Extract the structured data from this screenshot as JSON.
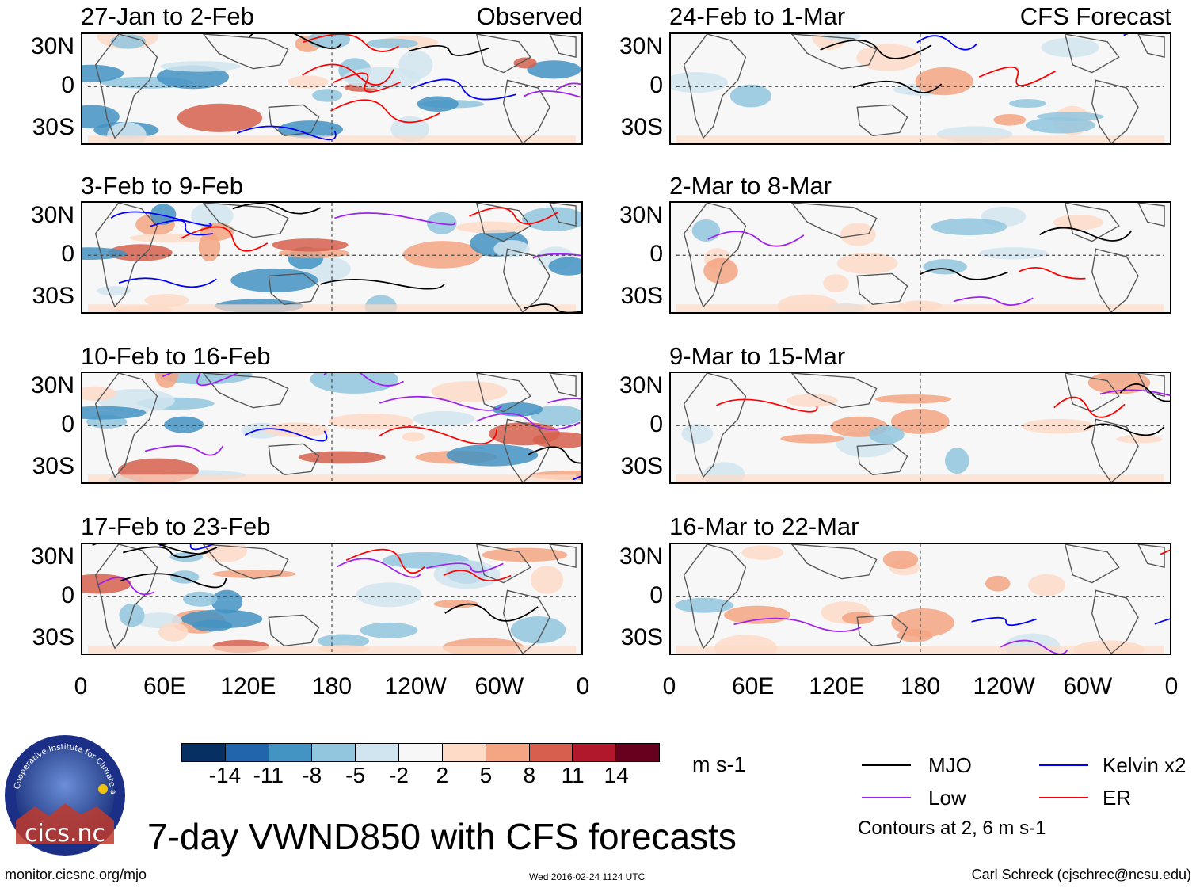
{
  "panels": [
    {
      "title": "27-Jan to 2-Feb",
      "tag": "Observed"
    },
    {
      "title": "3-Feb to 9-Feb",
      "tag": ""
    },
    {
      "title": "10-Feb to 16-Feb",
      "tag": ""
    },
    {
      "title": "17-Feb to 23-Feb",
      "tag": ""
    },
    {
      "title": "24-Feb to 1-Mar",
      "tag": "CFS Forecast"
    },
    {
      "title": "2-Mar to 8-Mar",
      "tag": ""
    },
    {
      "title": "9-Mar to 15-Mar",
      "tag": ""
    },
    {
      "title": "16-Mar to 22-Mar",
      "tag": ""
    }
  ],
  "lat_labels": [
    "30N",
    "0",
    "30S"
  ],
  "lon_labels": [
    "0",
    "60E",
    "120E",
    "180",
    "120W",
    "60W",
    "0"
  ],
  "colorbar": {
    "labels": [
      "-14",
      "-11",
      "-8",
      "-5",
      "-2",
      "2",
      "5",
      "8",
      "11",
      "14"
    ],
    "colors": [
      "#053061",
      "#2166ac",
      "#4393c3",
      "#92c5de",
      "#d1e5f0",
      "#f7f7f7",
      "#fddbc7",
      "#f4a582",
      "#d6604d",
      "#b2182b",
      "#67001f"
    ],
    "units": "m s-1"
  },
  "legend": [
    {
      "label": "MJO",
      "color": "#000000"
    },
    {
      "label": "Kelvin x2",
      "color": "#0000ff"
    },
    {
      "label": "Low",
      "color": "#a020f0"
    },
    {
      "label": "ER",
      "color": "#ff0000"
    }
  ],
  "contours_note": "Contours at 2, 6 m s-1",
  "title": "7-day VWND850 with CFS forecasts",
  "footer": {
    "site": "monitor.cicsnc.org/mjo",
    "timestamp": "Wed 2016-02-24 1124 UTC",
    "author": "Carl Schreck (cjschrec@ncsu.edu)"
  },
  "logo": {
    "text": "cics.nc",
    "ring_text": "Cooperative Institute for Climate and Satellites"
  }
}
